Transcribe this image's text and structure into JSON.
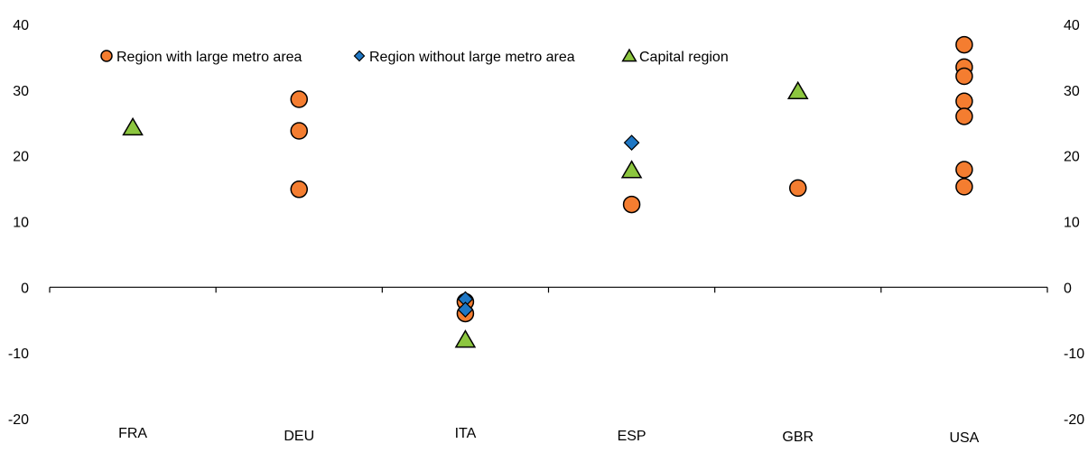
{
  "chart_data": {
    "type": "scatter",
    "title": "",
    "ylim": [
      -20,
      40
    ],
    "yticks": [
      -20,
      -10,
      0,
      10,
      20,
      30,
      40
    ],
    "categories": [
      "FRA",
      "DEU",
      "ITA",
      "ESP",
      "GBR",
      "USA"
    ],
    "legend_position": "top-left",
    "grid": false,
    "series": [
      {
        "name": "Region with large metro area",
        "marker": "circle",
        "color": "#F47D30",
        "points": [
          {
            "category": "DEU",
            "value": 28.6
          },
          {
            "category": "DEU",
            "value": 23.8
          },
          {
            "category": "DEU",
            "value": 14.9
          },
          {
            "category": "ITA",
            "value": -2.2
          },
          {
            "category": "ITA",
            "value": -4.0
          },
          {
            "category": "ESP",
            "value": 12.6
          },
          {
            "category": "GBR",
            "value": 15.1
          },
          {
            "category": "USA",
            "value": 36.9
          },
          {
            "category": "USA",
            "value": 33.5
          },
          {
            "category": "USA",
            "value": 32.1
          },
          {
            "category": "USA",
            "value": 28.3
          },
          {
            "category": "USA",
            "value": 26.0
          },
          {
            "category": "USA",
            "value": 17.9
          },
          {
            "category": "USA",
            "value": 15.3
          }
        ]
      },
      {
        "name": "Region without large metro area",
        "marker": "diamond",
        "color": "#1F77C4",
        "points": [
          {
            "category": "ITA",
            "value": -1.8
          },
          {
            "category": "ITA",
            "value": -3.4
          },
          {
            "category": "ESP",
            "value": 22.0
          }
        ]
      },
      {
        "name": "Capital region",
        "marker": "triangle",
        "color": "#8CC63F",
        "points": [
          {
            "category": "FRA",
            "value": 24.3
          },
          {
            "category": "ITA",
            "value": -8.0
          },
          {
            "category": "ESP",
            "value": 17.8
          },
          {
            "category": "GBR",
            "value": 29.8
          }
        ]
      }
    ]
  }
}
